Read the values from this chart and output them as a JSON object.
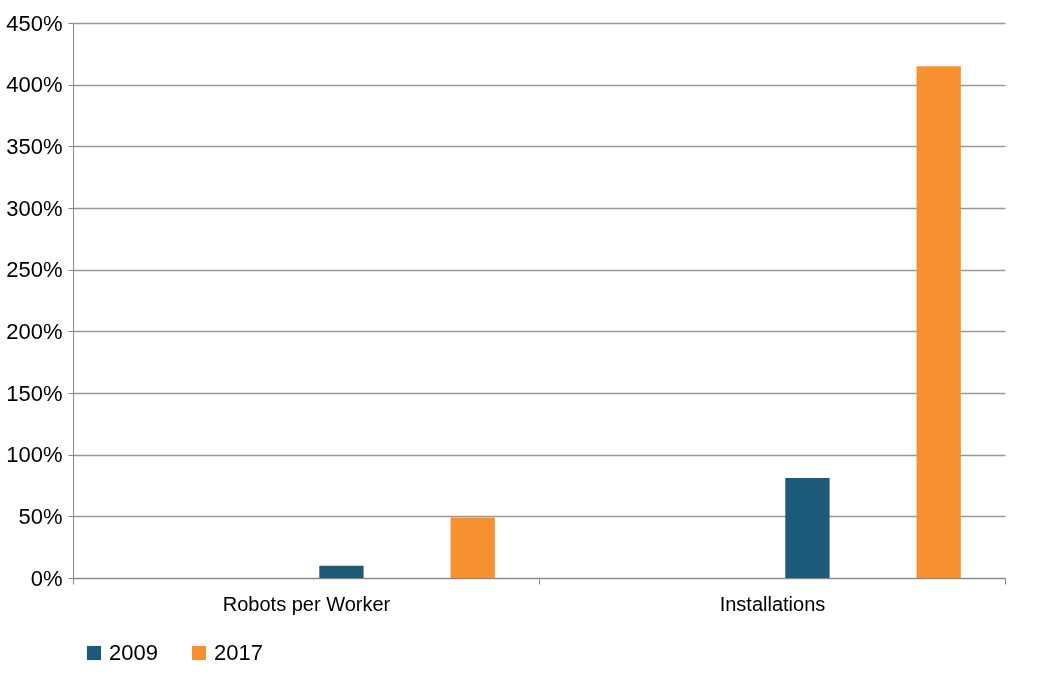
{
  "chart_data": {
    "type": "bar",
    "categories": [
      "Robots per Worker",
      "Installations"
    ],
    "series": [
      {
        "name": "2009",
        "color": "#1d5a7a",
        "values": [
          10,
          81
        ]
      },
      {
        "name": "2017",
        "color": "#f7902e",
        "values": [
          49,
          415
        ]
      }
    ],
    "ylim": [
      0,
      450
    ],
    "yticks": [
      {
        "value": 0,
        "label": "0%"
      },
      {
        "value": 50,
        "label": "50%"
      },
      {
        "value": 100,
        "label": "100%"
      },
      {
        "value": 150,
        "label": "150%"
      },
      {
        "value": 200,
        "label": "200%"
      },
      {
        "value": 250,
        "label": "250%"
      },
      {
        "value": 300,
        "label": "300%"
      },
      {
        "value": 350,
        "label": "350%"
      },
      {
        "value": 400,
        "label": "400%"
      },
      {
        "value": 450,
        "label": "450%"
      }
    ],
    "grid": "y",
    "legend": "bottom"
  }
}
